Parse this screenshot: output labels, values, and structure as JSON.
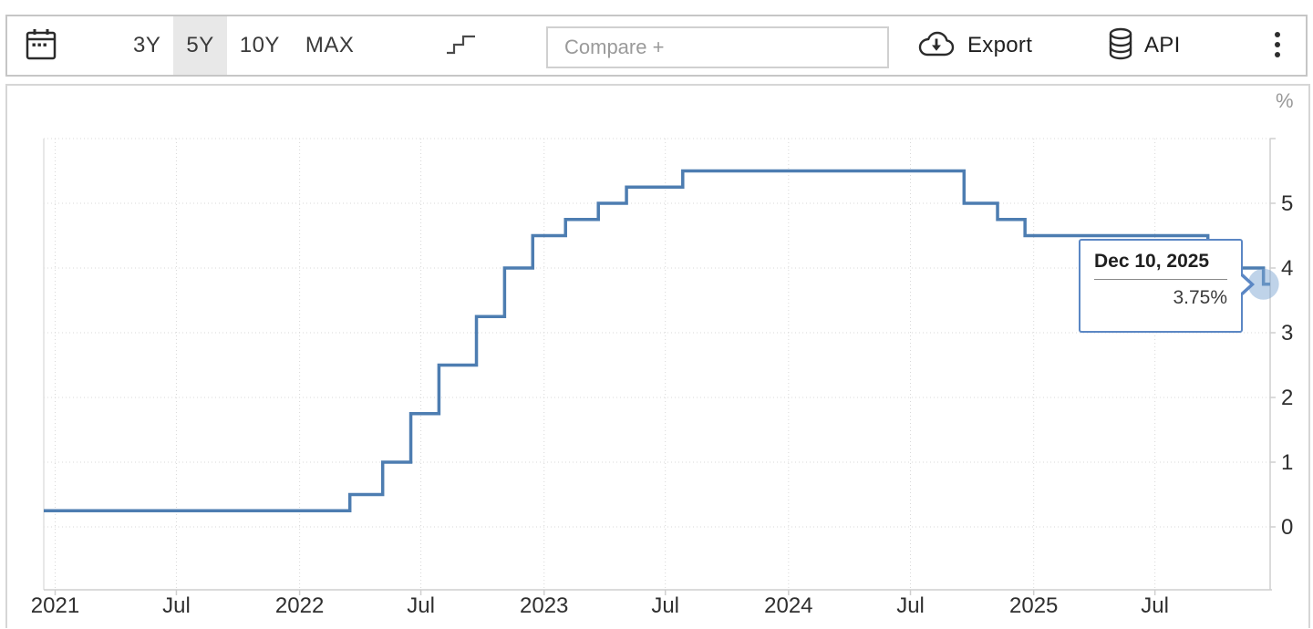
{
  "toolbar": {
    "calendar_button": {
      "icon": "calendar-icon"
    },
    "range_buttons": [
      {
        "label": "3Y",
        "selected": false
      },
      {
        "label": "5Y",
        "selected": true
      },
      {
        "label": "10Y",
        "selected": false
      },
      {
        "label": "MAX",
        "selected": false
      }
    ],
    "chart_type_button": {
      "icon": "step-line-icon"
    },
    "compare_input": {
      "placeholder": "Compare +",
      "value": ""
    },
    "export_button": {
      "label": "Export",
      "icon": "cloud-download-icon"
    },
    "api_button": {
      "label": "API",
      "icon": "database-icon"
    },
    "menu_button": {
      "icon": "kebab-menu-icon"
    }
  },
  "chart_data": {
    "type": "line",
    "step": true,
    "unit_label": "%",
    "ylim": [
      0,
      6
    ],
    "y_ticks": [
      0,
      1,
      2,
      3,
      4,
      5
    ],
    "x_domain": [
      "2020-12-15",
      "2025-12-20"
    ],
    "x_ticks": [
      {
        "date": "2021-01-01",
        "label": "2021"
      },
      {
        "date": "2021-07-01",
        "label": "Jul"
      },
      {
        "date": "2022-01-01",
        "label": "2022"
      },
      {
        "date": "2022-07-01",
        "label": "Jul"
      },
      {
        "date": "2023-01-01",
        "label": "2023"
      },
      {
        "date": "2023-07-01",
        "label": "Jul"
      },
      {
        "date": "2024-01-01",
        "label": "2024"
      },
      {
        "date": "2024-07-01",
        "label": "Jul"
      },
      {
        "date": "2025-01-01",
        "label": "2025"
      },
      {
        "date": "2025-07-01",
        "label": "Jul"
      }
    ],
    "series": [
      {
        "color": "#4d7db1",
        "points": [
          [
            "2020-12-15",
            0.25
          ],
          [
            "2022-03-17",
            0.5
          ],
          [
            "2022-05-05",
            1.0
          ],
          [
            "2022-06-16",
            1.75
          ],
          [
            "2022-07-28",
            2.5
          ],
          [
            "2022-09-22",
            3.25
          ],
          [
            "2022-11-03",
            4.0
          ],
          [
            "2022-12-15",
            4.5
          ],
          [
            "2023-02-02",
            4.75
          ],
          [
            "2023-03-23",
            5.0
          ],
          [
            "2023-05-04",
            5.25
          ],
          [
            "2023-07-27",
            5.5
          ],
          [
            "2024-09-19",
            5.0
          ],
          [
            "2024-11-08",
            4.75
          ],
          [
            "2024-12-19",
            4.5
          ],
          [
            "2025-09-18",
            4.25
          ],
          [
            "2025-10-30",
            4.0
          ],
          [
            "2025-12-10",
            3.75
          ]
        ]
      }
    ],
    "grid": true,
    "legend": "none",
    "last_point": {
      "date": "2025-12-10",
      "value": 3.75
    },
    "marker_color": "rgba(127,168,211,0.5)",
    "grid_color": "#d8d8d8",
    "axis_color": "#cfcfcf"
  },
  "tooltip": {
    "date": "Dec 10, 2025",
    "value": "3.75%"
  }
}
